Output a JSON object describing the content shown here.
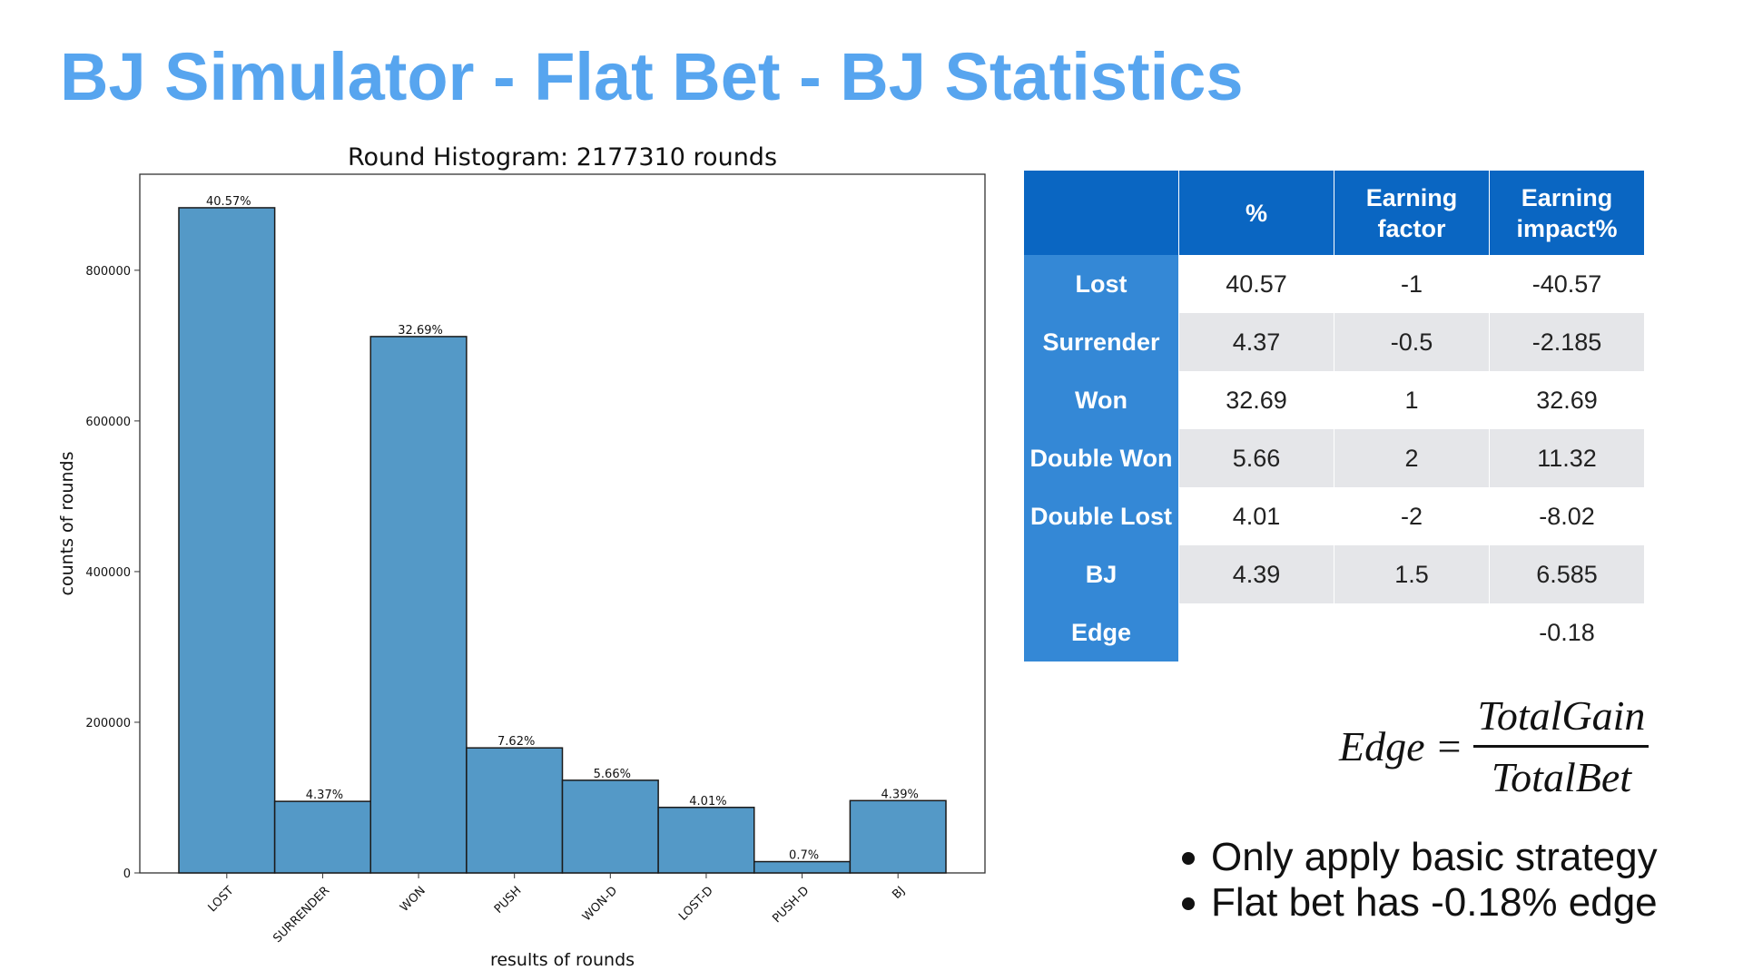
{
  "title": "BJ Simulator - Flat Bet - BJ Statistics",
  "chart_data": {
    "type": "bar",
    "title": "Round Histogram: 2177310 rounds",
    "x_label": "results of rounds",
    "y_label": "counts of rounds",
    "categories": [
      "LOST",
      "SURRENDER",
      "WON",
      "PUSH",
      "WON-D",
      "LOST-D",
      "PUSH-D",
      "BJ"
    ],
    "values": [
      883000,
      95000,
      712000,
      166000,
      123000,
      87000,
      15000,
      96000
    ],
    "value_labels": [
      "40.57%",
      "4.37%",
      "32.69%",
      "7.62%",
      "5.66%",
      "4.01%",
      "0.7%",
      "4.39%"
    ],
    "color": "#5499c7",
    "ylim": [
      0,
      927500
    ],
    "yticks": [
      0,
      200000,
      400000,
      600000,
      800000
    ],
    "grid": false
  },
  "table": {
    "columns": [
      "%",
      "Earning factor",
      "Earning impact%"
    ],
    "rows": [
      {
        "label": "Lost",
        "pct": "40.57",
        "factor": "-1",
        "impact": "-40.57"
      },
      {
        "label": "Surrender",
        "pct": "4.37",
        "factor": "-0.5",
        "impact": "-2.185"
      },
      {
        "label": "Won",
        "pct": "32.69",
        "factor": "1",
        "impact": "32.69"
      },
      {
        "label": "Double Won",
        "pct": "5.66",
        "factor": "2",
        "impact": "11.32"
      },
      {
        "label": "Double Lost",
        "pct": "4.01",
        "factor": "-2",
        "impact": "-8.02"
      },
      {
        "label": "BJ",
        "pct": "4.39",
        "factor": "1.5",
        "impact": "6.585"
      },
      {
        "label": "Edge",
        "impact": "-0.18"
      }
    ]
  },
  "formula": {
    "lhs": "Edge",
    "op": "=",
    "numerator": "TotalGain",
    "denominator": "TotalBet"
  },
  "bullets": [
    "Only apply basic strategy",
    "Flat bet has -0.18% edge"
  ]
}
